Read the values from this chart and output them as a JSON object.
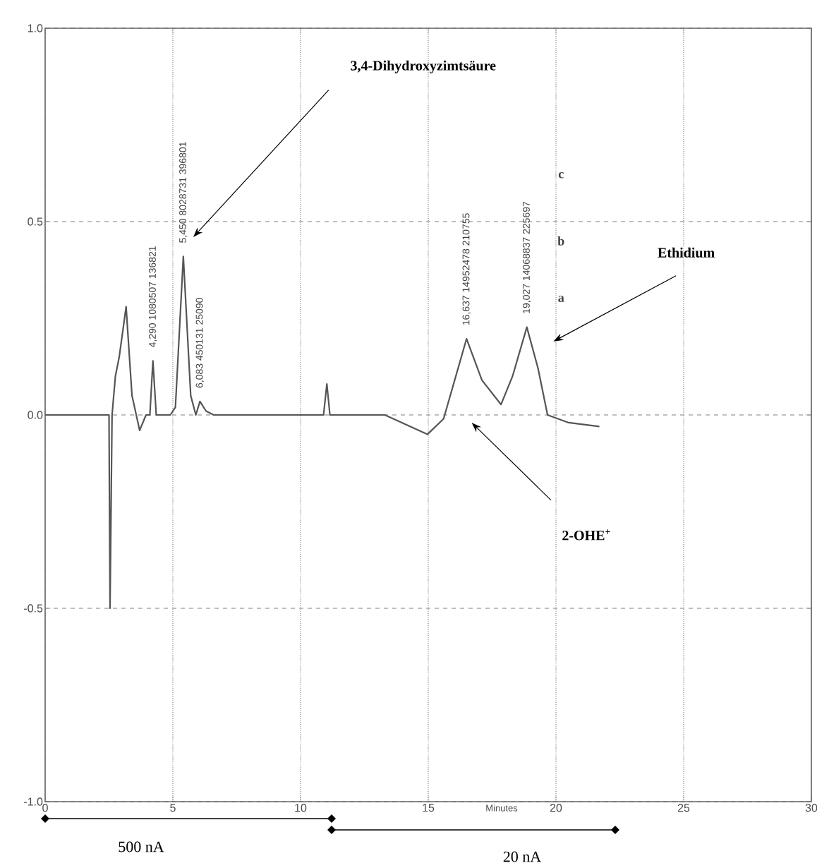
{
  "chart_data": {
    "type": "line",
    "xlabel": "Minutes",
    "x": [
      0,
      2.4,
      2.5,
      2.54,
      2.62,
      2.75,
      2.9,
      3.17,
      3.4,
      3.7,
      3.95,
      4.1,
      4.22,
      4.35,
      4.5,
      4.9,
      5.1,
      5.41,
      5.7,
      5.9,
      6.06,
      6.3,
      6.6,
      8,
      9,
      10.9,
      11.03,
      11.15,
      12,
      13.3,
      14.97,
      15.6,
      16.5,
      17.1,
      17.85,
      18.3,
      18.86,
      19.3,
      19.67,
      20.5,
      21.7
    ],
    "values": [
      0,
      0,
      0,
      -0.5,
      0,
      0.1,
      0.15,
      0.28,
      0.05,
      -0.04,
      0,
      0,
      0.14,
      0,
      0,
      0,
      0.02,
      0.41,
      0.05,
      0,
      0.035,
      0.01,
      0,
      0,
      0,
      0,
      0.08,
      0,
      0,
      0,
      -0.05,
      -0.01,
      0.197,
      0.09,
      0.027,
      0.1,
      0.227,
      0.12,
      0,
      -0.02,
      -0.03
    ],
    "color": "#555555",
    "grid": true,
    "xlim": [
      0,
      30
    ],
    "xticks": [
      0,
      5,
      10,
      15,
      20,
      25,
      30
    ],
    "ylim": [
      -1,
      1
    ],
    "yticks": [
      {
        "value": -1,
        "label": "-1.0"
      },
      {
        "value": -0.5,
        "label": "-0.5"
      },
      {
        "value": 0,
        "label": "0.0"
      },
      {
        "value": 0.5,
        "label": "0.5"
      },
      {
        "value": 1,
        "label": "1.0"
      }
    ],
    "annotations": [
      {
        "text": "4,290 1080507 136821",
        "x": 4.22,
        "y": 0.14
      },
      {
        "text": "5,450 8028731 396801",
        "x": 5.41,
        "y": 0.41
      },
      {
        "text": "6,083 450131 25090",
        "x": 6.06,
        "y": 0.035
      },
      {
        "text": "16,637 14952478 210755",
        "x": 16.5,
        "y": 0.197
      },
      {
        "text": "19,027 14068837 225697",
        "x": 18.86,
        "y": 0.227
      },
      "3,4-Dihydroxyzimtsäure",
      "Ethidium",
      "2-OHE$^{+}$",
      "a",
      "b",
      "c",
      "500 nA",
      "20 nA"
    ]
  }
}
